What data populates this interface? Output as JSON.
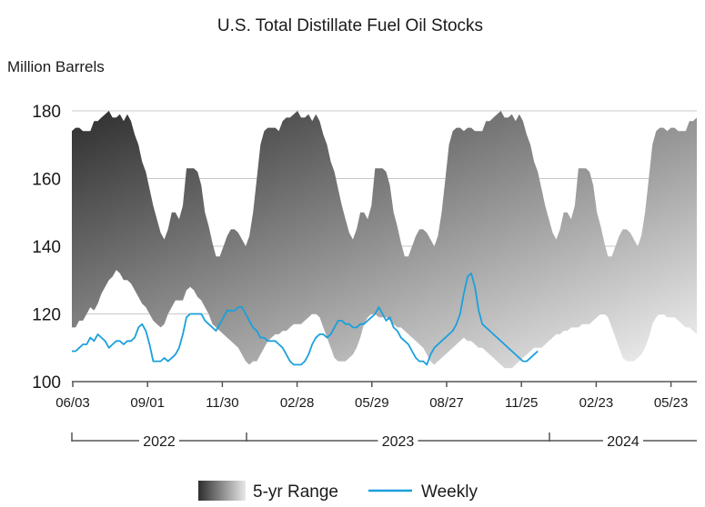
{
  "chart_data": {
    "type": "area",
    "title": "U.S. Total Distillate Fuel Oil Stocks",
    "ylabel": "Million Barrels",
    "xlabel": "",
    "ylim": [
      100,
      180
    ],
    "yticks": [
      100,
      120,
      140,
      160,
      180
    ],
    "xticks": [
      "06/03",
      "09/01",
      "11/30",
      "02/28",
      "05/29",
      "08/27",
      "11/25",
      "02/23",
      "05/23"
    ],
    "years": [
      "2022",
      "2023",
      "2024"
    ],
    "grid": true,
    "legend_placement": "bottom",
    "colors": {
      "weekly": "#1aa0dc",
      "range_dark": "#3a3a3a",
      "range_light": "#f2f2f2"
    },
    "series": [
      {
        "name": "5-yr Range",
        "kind": "band",
        "x": [
          0,
          1,
          2,
          3,
          4,
          5,
          6,
          7,
          8,
          9,
          10,
          11,
          12,
          13,
          14,
          15,
          16,
          17,
          18,
          19,
          20,
          21,
          22,
          23,
          24,
          25,
          26,
          27,
          28,
          29,
          30,
          31,
          32,
          33,
          34,
          35,
          36,
          37,
          38,
          39,
          40,
          41,
          42,
          43,
          44,
          45,
          46,
          47,
          48,
          49,
          50,
          51,
          52,
          53,
          54,
          55,
          56,
          57,
          58,
          59,
          60,
          61,
          62,
          63,
          64,
          65,
          66,
          67,
          68,
          69,
          70,
          71,
          72,
          73,
          74,
          75,
          76,
          77,
          78,
          79,
          80,
          81,
          82,
          83,
          84,
          85,
          86,
          87,
          88,
          89,
          90,
          91,
          92,
          93,
          94,
          95,
          96,
          97,
          98,
          99,
          100,
          101,
          102,
          103,
          104,
          105,
          106,
          107,
          108,
          109,
          110,
          111,
          112,
          113,
          114,
          115,
          116,
          117,
          118,
          119,
          120,
          121,
          122,
          123,
          124,
          125,
          126,
          127,
          128,
          129,
          130,
          131,
          132,
          133,
          134,
          135,
          136,
          137,
          138,
          139,
          140,
          141,
          142,
          143,
          144,
          145,
          146,
          147,
          148,
          149,
          150,
          151,
          152,
          153,
          154,
          155,
          156,
          157,
          158,
          159,
          160,
          161,
          162,
          163,
          164,
          165,
          166,
          167,
          168,
          169
        ],
        "high": [
          174,
          175,
          175,
          174,
          174,
          174,
          177,
          177,
          178,
          179,
          180,
          178,
          178,
          179,
          177,
          179,
          177,
          173,
          170,
          165,
          162,
          157,
          152,
          148,
          144,
          142,
          145,
          150,
          150,
          148,
          152,
          163,
          163,
          163,
          162,
          158,
          150,
          146,
          141,
          137,
          137,
          140,
          143,
          145,
          145,
          144,
          142,
          140,
          143,
          150,
          160,
          170,
          174,
          175,
          175,
          175,
          174,
          177,
          178,
          178,
          179,
          180,
          178,
          178,
          179,
          177,
          179,
          177,
          173,
          170,
          165,
          162,
          157,
          152,
          148,
          144,
          142,
          145,
          150,
          150,
          148,
          152,
          163,
          163,
          163,
          162,
          158,
          150,
          146,
          141,
          137,
          137,
          140,
          143,
          145,
          145,
          144,
          142,
          140,
          143,
          150,
          160,
          170,
          174,
          175,
          175,
          174,
          175,
          175,
          174,
          174,
          174,
          177,
          177,
          178,
          179,
          180,
          178,
          178,
          179,
          177,
          179,
          177,
          173,
          170,
          165,
          162,
          157,
          152,
          148,
          144,
          142,
          145,
          150,
          150,
          148,
          152,
          163,
          163,
          163,
          162,
          158,
          150,
          146,
          141,
          137,
          137,
          140,
          143,
          145,
          145,
          144,
          142,
          140,
          143,
          150,
          160,
          170,
          174,
          175,
          175,
          174,
          175,
          175,
          174,
          174,
          174,
          177,
          177,
          178
        ],
        "low": [
          116,
          116,
          118,
          118,
          120,
          122,
          121,
          123,
          126,
          128,
          130,
          131,
          133,
          132,
          130,
          130,
          129,
          127,
          125,
          123,
          122,
          120,
          118,
          117,
          116,
          117,
          120,
          122,
          124,
          124,
          124,
          127,
          128,
          127,
          125,
          124,
          122,
          120,
          117,
          116,
          115,
          114,
          113,
          112,
          111,
          110,
          108,
          106,
          105,
          106,
          106,
          108,
          110,
          112,
          113,
          114,
          114,
          115,
          115,
          116,
          117,
          117,
          117,
          118,
          119,
          120,
          120,
          119,
          116,
          113,
          110,
          107,
          106,
          106,
          106,
          107,
          108,
          110,
          113,
          117,
          119,
          120,
          120,
          119,
          119,
          119,
          118,
          117,
          116,
          116,
          115,
          114,
          113,
          112,
          111,
          110,
          108,
          106,
          105,
          106,
          107,
          108,
          109,
          110,
          111,
          112,
          113,
          112,
          112,
          111,
          110,
          110,
          109,
          108,
          107,
          106,
          105,
          104,
          104,
          104,
          105,
          106,
          107,
          108,
          109,
          110,
          110,
          110,
          111,
          112,
          113,
          114,
          114,
          115,
          115,
          116,
          116,
          116,
          117,
          117,
          117,
          118,
          119,
          120,
          120,
          119,
          116,
          113,
          110,
          107,
          106,
          106,
          106,
          107,
          108,
          110,
          113,
          117,
          119,
          120,
          120,
          119,
          119,
          119,
          118,
          117,
          116,
          116,
          115,
          114
        ]
      },
      {
        "name": "Weekly",
        "kind": "line",
        "x": [
          0,
          1,
          2,
          3,
          4,
          5,
          6,
          7,
          8,
          9,
          10,
          11,
          12,
          13,
          14,
          15,
          16,
          17,
          18,
          19,
          20,
          21,
          22,
          23,
          24,
          25,
          26,
          27,
          28,
          29,
          30,
          31,
          32,
          33,
          34,
          35,
          36,
          37,
          38,
          39,
          40,
          41,
          42,
          43,
          44,
          45,
          46,
          47,
          48,
          49,
          50,
          51,
          52,
          53,
          54,
          55,
          56,
          57,
          58,
          59,
          60,
          61,
          62,
          63,
          64,
          65,
          66,
          67,
          68,
          69,
          70,
          71,
          72,
          73,
          74,
          75,
          76,
          77,
          78,
          79,
          80,
          81,
          82,
          83,
          84,
          85,
          86,
          87,
          88,
          89,
          90,
          91,
          92,
          93,
          94,
          95,
          96,
          97,
          98,
          99,
          100,
          101,
          102,
          103,
          104,
          105,
          106,
          107,
          108,
          109,
          110,
          111,
          112,
          113,
          114,
          115,
          116,
          117,
          118,
          119,
          120,
          121,
          122,
          123,
          124,
          125,
          126
        ],
        "values": [
          109,
          109,
          110,
          111,
          111,
          113,
          112,
          114,
          113,
          112,
          110,
          111,
          112,
          112,
          111,
          112,
          112,
          113,
          116,
          117,
          115,
          111,
          106,
          106,
          106,
          107,
          106,
          107,
          108,
          110,
          114,
          119,
          120,
          120,
          120,
          120,
          118,
          117,
          116,
          115,
          117,
          119,
          121,
          121,
          121,
          122,
          122,
          120,
          118,
          116,
          115,
          113,
          113,
          112,
          112,
          112,
          111,
          110,
          108,
          106,
          105,
          105,
          105,
          106,
          108,
          111,
          113,
          114,
          114,
          113,
          114,
          116,
          118,
          118,
          117,
          117,
          116,
          116,
          117,
          117,
          118,
          119,
          120,
          122,
          120,
          118,
          119,
          116,
          115,
          113,
          112,
          111,
          109,
          107,
          106,
          106,
          105,
          108,
          110,
          111,
          112,
          113,
          114,
          115,
          117,
          120,
          126,
          131,
          132,
          128,
          121,
          117,
          116,
          115,
          114,
          113,
          112,
          111,
          110,
          109,
          108,
          107,
          106,
          106,
          107,
          108,
          109
        ]
      }
    ]
  },
  "legend": {
    "range_label": "5-yr Range",
    "weekly_label": "Weekly"
  }
}
